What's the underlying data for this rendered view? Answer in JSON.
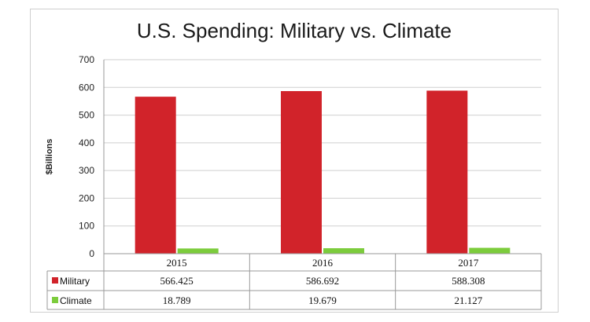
{
  "chart_data": {
    "type": "bar",
    "title": "U.S. Spending: Military vs. Climate",
    "ylabel": "$Billions",
    "xlabel": "",
    "categories": [
      "2015",
      "2016",
      "2017"
    ],
    "ylim": [
      0,
      700
    ],
    "yticks": [
      "0",
      "100",
      "200",
      "300",
      "400",
      "500",
      "600",
      "700"
    ],
    "grid": true,
    "legend": "data-table",
    "series": [
      {
        "name": "Military",
        "color": "#d1232a",
        "values": [
          566.425,
          586.692,
          588.308
        ],
        "labels": [
          "566.425",
          "586.692",
          "588.308"
        ]
      },
      {
        "name": "Climate",
        "color": "#7ccc3c",
        "values": [
          18.789,
          19.679,
          21.127
        ],
        "labels": [
          "18.789",
          "19.679",
          "21.127"
        ]
      }
    ]
  }
}
